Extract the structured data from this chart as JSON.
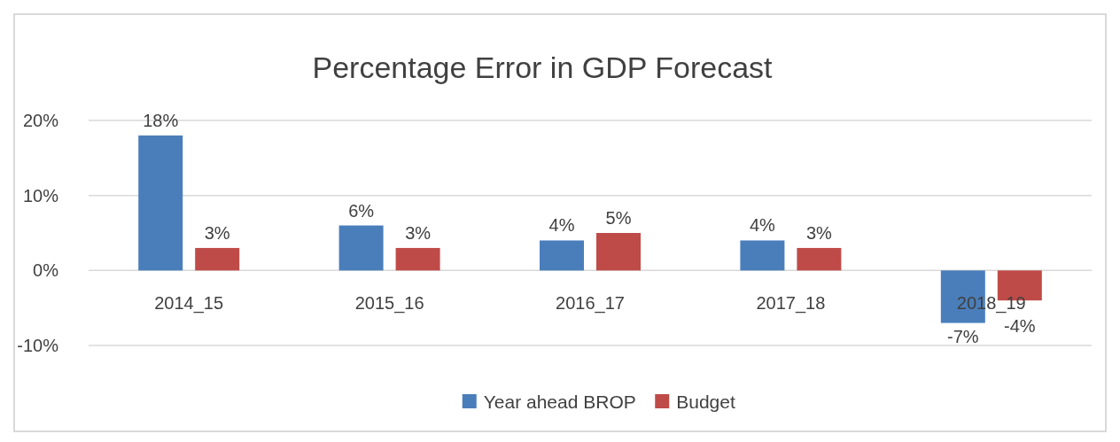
{
  "chart_data": {
    "type": "bar",
    "title": "Percentage Error in GDP Forecast",
    "categories": [
      "2014_15",
      "2015_16",
      "2016_17",
      "2017_18",
      "2018_19"
    ],
    "series": [
      {
        "name": "Year ahead BROP",
        "color": "#4a7ebb",
        "values": [
          18,
          6,
          4,
          4,
          -7
        ],
        "value_labels": [
          "18%",
          "6%",
          "4%",
          "4%",
          "-7%"
        ]
      },
      {
        "name": "Budget",
        "color": "#be4b48",
        "values": [
          3,
          3,
          5,
          3,
          -4
        ],
        "value_labels": [
          "3%",
          "3%",
          "5%",
          "3%",
          "-4%"
        ]
      }
    ],
    "ylim": [
      -10,
      20
    ],
    "yticks": [
      {
        "value": -10,
        "label": "-10%"
      },
      {
        "value": 0,
        "label": "0%"
      },
      {
        "value": 10,
        "label": "10%"
      },
      {
        "value": 20,
        "label": "20%"
      }
    ],
    "grid": "y",
    "legend": "bottom"
  }
}
